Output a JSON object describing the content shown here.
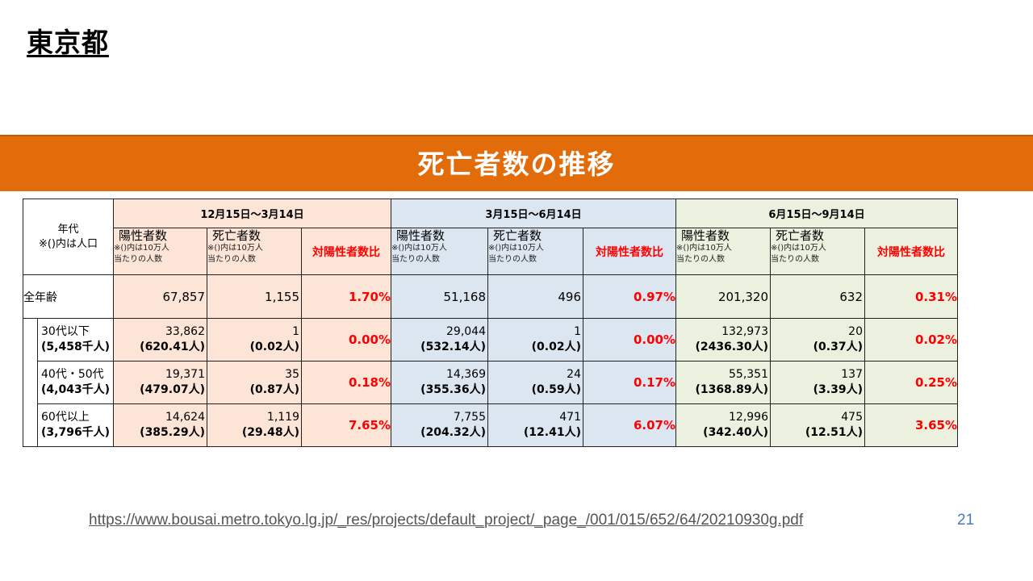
{
  "slide_title": "東京都",
  "banner_title": "死亡者数の推移",
  "table": {
    "age_header": [
      "年代",
      "※()内は人口"
    ],
    "periods": [
      "12月15日〜3月14日",
      "3月15日〜6月14日",
      "6月15日〜9月14日"
    ],
    "col_positive": {
      "title": "陽性者数",
      "sub1": "※()内は10万人",
      "sub2": "当たりの人数"
    },
    "col_deaths": {
      "title": "死亡者数",
      "sub1": "※()内は10万人",
      "sub2": "当たりの人数"
    },
    "col_ratio": "対陽性者数比",
    "rows": [
      {
        "age": "全年齢",
        "pop": "",
        "cells": [
          {
            "pos": "67,857",
            "pos_rate": "",
            "death": "1,155",
            "death_rate": "",
            "ratio": "1.70%"
          },
          {
            "pos": "51,168",
            "pos_rate": "",
            "death": "496",
            "death_rate": "",
            "ratio": "0.97%"
          },
          {
            "pos": "201,320",
            "pos_rate": "",
            "death": "632",
            "death_rate": "",
            "ratio": "0.31%"
          }
        ]
      },
      {
        "age": "30代以下",
        "pop": "(5,458千人)",
        "cells": [
          {
            "pos": "33,862",
            "pos_rate": "(620.41人)",
            "death": "1",
            "death_rate": "(0.02人)",
            "ratio": "0.00%"
          },
          {
            "pos": "29,044",
            "pos_rate": "(532.14人)",
            "death": "1",
            "death_rate": "(0.02人)",
            "ratio": "0.00%"
          },
          {
            "pos": "132,973",
            "pos_rate": "(2436.30人)",
            "death": "20",
            "death_rate": "(0.37人)",
            "ratio": "0.02%"
          }
        ]
      },
      {
        "age": "40代・50代",
        "pop": "(4,043千人)",
        "cells": [
          {
            "pos": "19,371",
            "pos_rate": "(479.07人)",
            "death": "35",
            "death_rate": "(0.87人)",
            "ratio": "0.18%"
          },
          {
            "pos": "14,369",
            "pos_rate": "(355.36人)",
            "death": "24",
            "death_rate": "(0.59人)",
            "ratio": "0.17%"
          },
          {
            "pos": "55,351",
            "pos_rate": "(1368.89人)",
            "death": "137",
            "death_rate": "(3.39人)",
            "ratio": "0.25%"
          }
        ]
      },
      {
        "age": "60代以上",
        "pop": "(3,796千人)",
        "cells": [
          {
            "pos": "14,624",
            "pos_rate": "(385.29人)",
            "death": "1,119",
            "death_rate": "(29.48人)",
            "ratio": "7.65%"
          },
          {
            "pos": "7,755",
            "pos_rate": "(204.32人)",
            "death": "471",
            "death_rate": "(12.41人)",
            "ratio": "6.07%"
          },
          {
            "pos": "12,996",
            "pos_rate": "(342.40人)",
            "death": "475",
            "death_rate": "(12.51人)",
            "ratio": "3.65%"
          }
        ]
      }
    ]
  },
  "footer_url": "https://www.bousai.metro.tokyo.lg.jp/_res/projects/default_project/_page_/001/015/652/64/20210930g.pdf",
  "page_number": "21",
  "colors": {
    "banner": "#e36c0a",
    "period1": "#fce4d6",
    "period2": "#dce6f1",
    "period3": "#ebf1de",
    "ratio": "#ff0000",
    "page_number": "#4a7ab5"
  }
}
